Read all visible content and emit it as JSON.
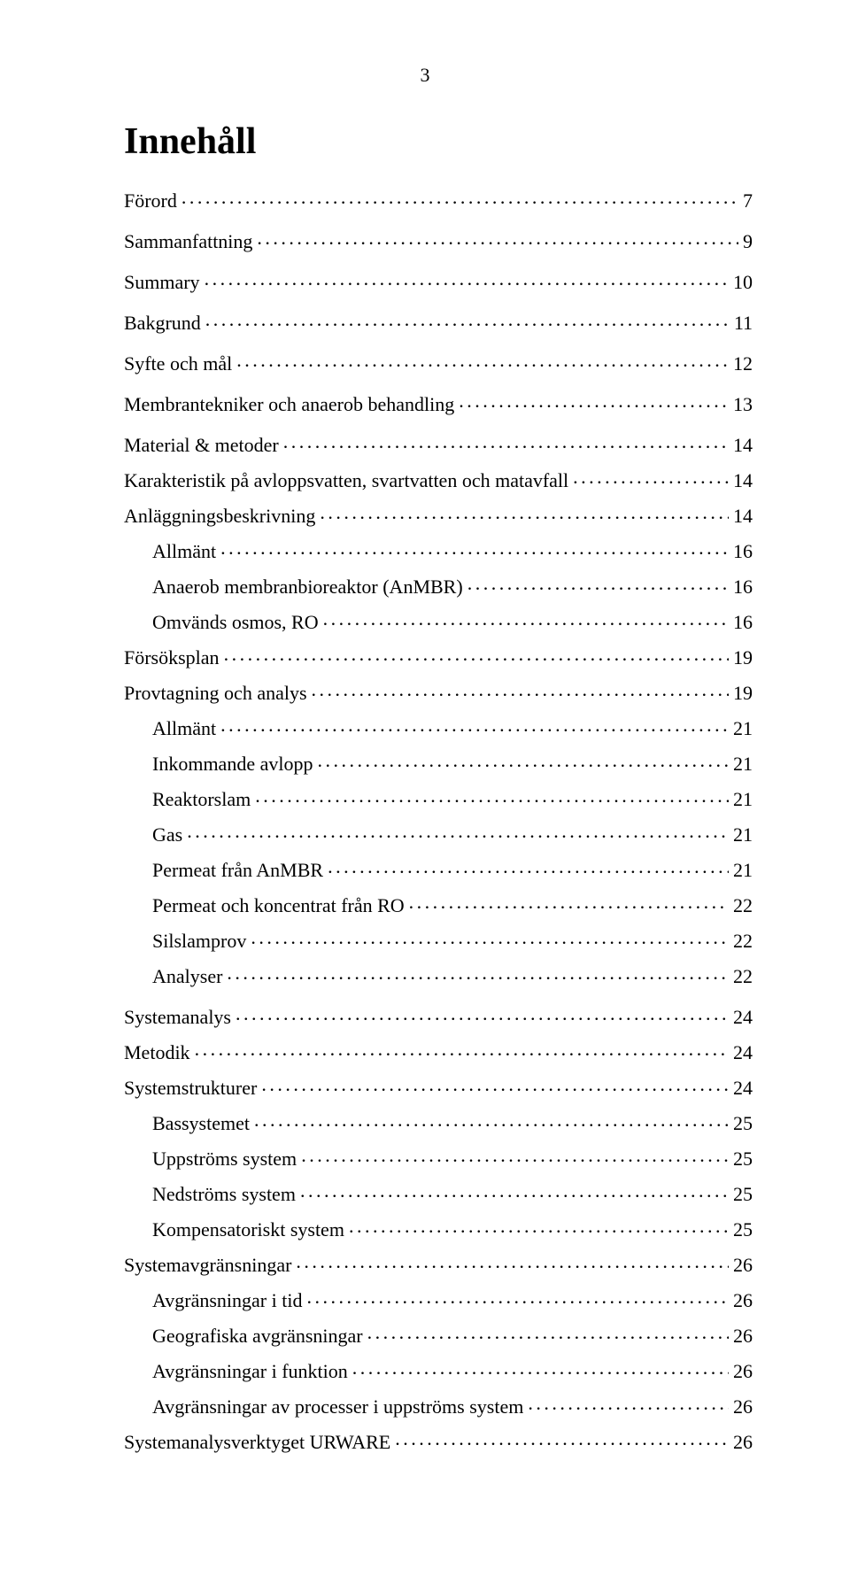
{
  "page_number": "3",
  "heading": "Innehåll",
  "font_family": "Times New Roman",
  "font_size_body_pt": 12,
  "font_size_heading_pt": 24,
  "text_color": "#000000",
  "background_color": "#ffffff",
  "toc": [
    {
      "label": "Förord",
      "page": "7",
      "level": 0
    },
    {
      "label": "Sammanfattning",
      "page": "9",
      "level": 0
    },
    {
      "label": "Summary",
      "page": "10",
      "level": 0
    },
    {
      "label": "Bakgrund",
      "page": "11",
      "level": 0
    },
    {
      "label": "Syfte och mål",
      "page": "12",
      "level": 0
    },
    {
      "label": "Membrantekniker och anaerob behandling",
      "page": "13",
      "level": 0
    },
    {
      "label": "Material & metoder",
      "page": "14",
      "level": 0
    },
    {
      "label": "Karakteristik på avloppsvatten, svartvatten och matavfall",
      "page": "14",
      "level": 1
    },
    {
      "label": "Anläggningsbeskrivning",
      "page": "14",
      "level": 1
    },
    {
      "label": "Allmänt",
      "page": "16",
      "level": 2
    },
    {
      "label": "Anaerob membranbioreaktor (AnMBR)",
      "page": "16",
      "level": 2
    },
    {
      "label": "Omvänds osmos, RO",
      "page": "16",
      "level": 2
    },
    {
      "label": "Försöksplan",
      "page": "19",
      "level": 1
    },
    {
      "label": "Provtagning och analys",
      "page": "19",
      "level": 1
    },
    {
      "label": "Allmänt",
      "page": "21",
      "level": 2
    },
    {
      "label": "Inkommande avlopp",
      "page": "21",
      "level": 2
    },
    {
      "label": "Reaktorslam",
      "page": "21",
      "level": 2
    },
    {
      "label": "Gas",
      "page": "21",
      "level": 2
    },
    {
      "label": "Permeat från AnMBR",
      "page": "21",
      "level": 2
    },
    {
      "label": "Permeat och koncentrat från RO",
      "page": "22",
      "level": 2
    },
    {
      "label": "Silslamprov",
      "page": "22",
      "level": 2
    },
    {
      "label": "Analyser",
      "page": "22",
      "level": 2
    },
    {
      "label": "Systemanalys",
      "page": "24",
      "level": 0
    },
    {
      "label": "Metodik",
      "page": "24",
      "level": 1
    },
    {
      "label": "Systemstrukturer",
      "page": "24",
      "level": 1
    },
    {
      "label": "Bassystemet",
      "page": "25",
      "level": 2
    },
    {
      "label": "Uppströms system",
      "page": "25",
      "level": 2
    },
    {
      "label": "Nedströms system",
      "page": "25",
      "level": 2
    },
    {
      "label": "Kompensatoriskt system",
      "page": "25",
      "level": 2
    },
    {
      "label": "Systemavgränsningar",
      "page": "26",
      "level": 1
    },
    {
      "label": "Avgränsningar i tid",
      "page": "26",
      "level": 2
    },
    {
      "label": "Geografiska avgränsningar",
      "page": "26",
      "level": 2
    },
    {
      "label": "Avgränsningar i funktion",
      "page": "26",
      "level": 2
    },
    {
      "label": "Avgränsningar av processer i uppströms system",
      "page": "26",
      "level": 2
    },
    {
      "label": "Systemanalysverktyget URWARE",
      "page": "26",
      "level": 1
    }
  ]
}
